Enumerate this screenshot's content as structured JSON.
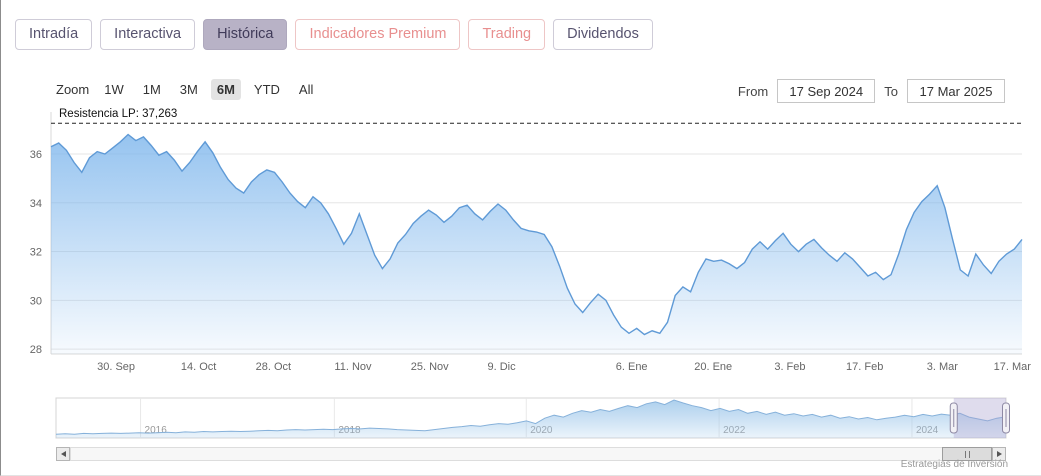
{
  "tabs": [
    {
      "label": "Intradía",
      "style": "default",
      "active": false
    },
    {
      "label": "Interactiva",
      "style": "default",
      "active": false
    },
    {
      "label": "Histórica",
      "style": "default",
      "active": true
    },
    {
      "label": "Indicadores Premium",
      "style": "premium",
      "active": false
    },
    {
      "label": "Trading",
      "style": "premium",
      "active": false
    },
    {
      "label": "Dividendos",
      "style": "default",
      "active": false
    }
  ],
  "toolbar": {
    "zoom_label": "Zoom",
    "ranges": [
      "1W",
      "1M",
      "3M",
      "6M",
      "YTD",
      "All"
    ],
    "selected_range": "6M",
    "from_label": "From",
    "from_value": "17 Sep 2024",
    "to_label": "To",
    "to_value": "17 Mar 2025"
  },
  "colors": {
    "tab_active_bg": "#b8b2c6",
    "premium_text": "#e88f8f",
    "accent_blue": "#7cb5ec"
  },
  "chart_data": [
    {
      "id": "main",
      "type": "area",
      "title": "",
      "xlabel": "",
      "ylabel": "",
      "ylim": [
        27.8,
        38.05
      ],
      "yticks": [
        28,
        30,
        32,
        34,
        36
      ],
      "xticks": [
        {
          "label": "30. Sep",
          "pos": 0.067
        },
        {
          "label": "14. Oct",
          "pos": 0.152
        },
        {
          "label": "28. Oct",
          "pos": 0.229
        },
        {
          "label": "11. Nov",
          "pos": 0.311
        },
        {
          "label": "25. Nov",
          "pos": 0.39
        },
        {
          "label": "9. Dic",
          "pos": 0.464
        },
        {
          "label": "6. Ene",
          "pos": 0.598
        },
        {
          "label": "20. Ene",
          "pos": 0.682
        },
        {
          "label": "3. Feb",
          "pos": 0.761
        },
        {
          "label": "17. Feb",
          "pos": 0.838
        },
        {
          "label": "3. Mar",
          "pos": 0.918
        },
        {
          "label": "17. Mar",
          "pos": 0.99
        }
      ],
      "resistance": {
        "label": "Resistencia LP: 37,263",
        "value": 37.263
      },
      "colors": {
        "line": "#5f9ad6",
        "fill": "#7cb5ec",
        "grid": "#e6e6e6",
        "axis_text": "#666666"
      },
      "series": [
        {
          "name": "price",
          "values": [
            36.3,
            36.45,
            36.15,
            35.65,
            35.25,
            35.85,
            36.1,
            36.0,
            36.25,
            36.5,
            36.8,
            36.55,
            36.7,
            36.35,
            35.95,
            36.1,
            35.75,
            35.3,
            35.65,
            36.1,
            36.5,
            36.05,
            35.45,
            34.95,
            34.6,
            34.4,
            34.85,
            35.15,
            35.35,
            35.25,
            34.85,
            34.4,
            34.05,
            33.8,
            34.25,
            34.0,
            33.55,
            32.95,
            32.3,
            32.75,
            33.55,
            32.7,
            31.85,
            31.3,
            31.7,
            32.35,
            32.7,
            33.15,
            33.45,
            33.7,
            33.5,
            33.2,
            33.45,
            33.8,
            33.9,
            33.55,
            33.3,
            33.65,
            33.95,
            33.7,
            33.3,
            32.95,
            32.85,
            32.8,
            32.7,
            32.2,
            31.4,
            30.5,
            29.85,
            29.5,
            29.9,
            30.25,
            30.0,
            29.4,
            28.9,
            28.65,
            28.85,
            28.6,
            28.75,
            28.65,
            29.1,
            30.2,
            30.55,
            30.35,
            31.15,
            31.7,
            31.6,
            31.65,
            31.5,
            31.3,
            31.55,
            32.1,
            32.4,
            32.1,
            32.45,
            32.75,
            32.3,
            32.0,
            32.3,
            32.5,
            32.15,
            31.85,
            31.6,
            31.95,
            31.7,
            31.35,
            31.0,
            31.15,
            30.85,
            31.05,
            31.9,
            32.9,
            33.6,
            34.05,
            34.35,
            34.7,
            33.8,
            32.5,
            31.25,
            31.0,
            31.9,
            31.45,
            31.1,
            31.6,
            31.9,
            32.1,
            32.5
          ]
        }
      ]
    },
    {
      "id": "navigator",
      "type": "area",
      "years": [
        {
          "label": "2016",
          "pos": 0.089
        },
        {
          "label": "2018",
          "pos": 0.293
        },
        {
          "label": "2020",
          "pos": 0.495
        },
        {
          "label": "2022",
          "pos": 0.698
        },
        {
          "label": "2024",
          "pos": 0.901
        }
      ],
      "selection": {
        "start": 0.945,
        "end": 1.0
      },
      "colors": {
        "line": "#86b1da",
        "fill": "#9ec7ea",
        "mask": "#aba3cf",
        "frame": "#d4d4d4"
      },
      "values": [
        0.1,
        0.11,
        0.1,
        0.12,
        0.11,
        0.12,
        0.13,
        0.12,
        0.13,
        0.14,
        0.13,
        0.14,
        0.15,
        0.14,
        0.16,
        0.15,
        0.17,
        0.16,
        0.17,
        0.18,
        0.17,
        0.18,
        0.19,
        0.2,
        0.19,
        0.21,
        0.22,
        0.21,
        0.22,
        0.23,
        0.22,
        0.24,
        0.25,
        0.24,
        0.26,
        0.25,
        0.24,
        0.22,
        0.21,
        0.2,
        0.19,
        0.22,
        0.25,
        0.28,
        0.3,
        0.33,
        0.31,
        0.35,
        0.38,
        0.36,
        0.4,
        0.45,
        0.38,
        0.52,
        0.6,
        0.55,
        0.65,
        0.72,
        0.68,
        0.75,
        0.7,
        0.78,
        0.85,
        0.8,
        0.9,
        0.95,
        0.88,
        1.0,
        0.92,
        0.85,
        0.8,
        0.72,
        0.78,
        0.7,
        0.75,
        0.65,
        0.7,
        0.62,
        0.68,
        0.6,
        0.64,
        0.58,
        0.62,
        0.55,
        0.6,
        0.52,
        0.56,
        0.5,
        0.54,
        0.48,
        0.52,
        0.55,
        0.6,
        0.56,
        0.62,
        0.58,
        0.63,
        0.6,
        0.65,
        0.55,
        0.5,
        0.45,
        0.52,
        0.56
      ]
    }
  ],
  "credit": "Estrategias de Inversión"
}
